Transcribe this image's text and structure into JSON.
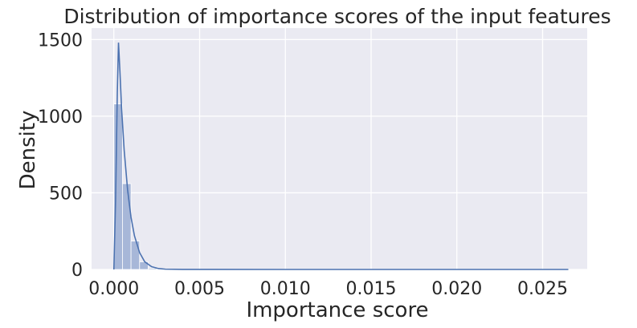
{
  "chart_data": {
    "type": "histogram",
    "title": "Distribution of importance scores of the input features",
    "xlabel": "Importance score",
    "ylabel": "Density",
    "xlim": [
      -0.0013,
      0.0276
    ],
    "ylim": [
      0,
      1575
    ],
    "x_ticks": [
      0.0,
      0.005,
      0.01,
      0.015,
      0.02,
      0.025
    ],
    "x_tick_labels": [
      "0.000",
      "0.005",
      "0.010",
      "0.015",
      "0.020",
      "0.025"
    ],
    "y_ticks": [
      0,
      500,
      1000,
      1500
    ],
    "y_tick_labels": [
      "0",
      "500",
      "1000",
      "1500"
    ],
    "grid": true,
    "background": "#eaeaf2",
    "bar_color": "#a7b7d8",
    "line_color": "#4c72b0",
    "bins": [
      {
        "x0": 0.0,
        "x1": 0.0005,
        "density": 1080
      },
      {
        "x0": 0.0005,
        "x1": 0.001,
        "density": 560
      },
      {
        "x0": 0.001,
        "x1": 0.0015,
        "density": 185
      },
      {
        "x0": 0.0015,
        "x1": 0.002,
        "density": 50
      },
      {
        "x0": 0.002,
        "x1": 0.0025,
        "density": 8
      },
      {
        "x0": 0.0025,
        "x1": 0.003,
        "density": 2
      }
    ],
    "kde": {
      "x": [
        0.0,
        0.0001,
        0.0002,
        0.00027,
        0.00035,
        0.00045,
        0.0006,
        0.0008,
        0.001,
        0.0012,
        0.0015,
        0.0018,
        0.0022,
        0.0026,
        0.003,
        0.004,
        0.006,
        0.01,
        0.015,
        0.02,
        0.0265
      ],
      "y": [
        0,
        450,
        1150,
        1480,
        1300,
        1050,
        780,
        520,
        340,
        220,
        110,
        50,
        18,
        6,
        2,
        0.5,
        0.1,
        0,
        0,
        0,
        0
      ]
    }
  }
}
